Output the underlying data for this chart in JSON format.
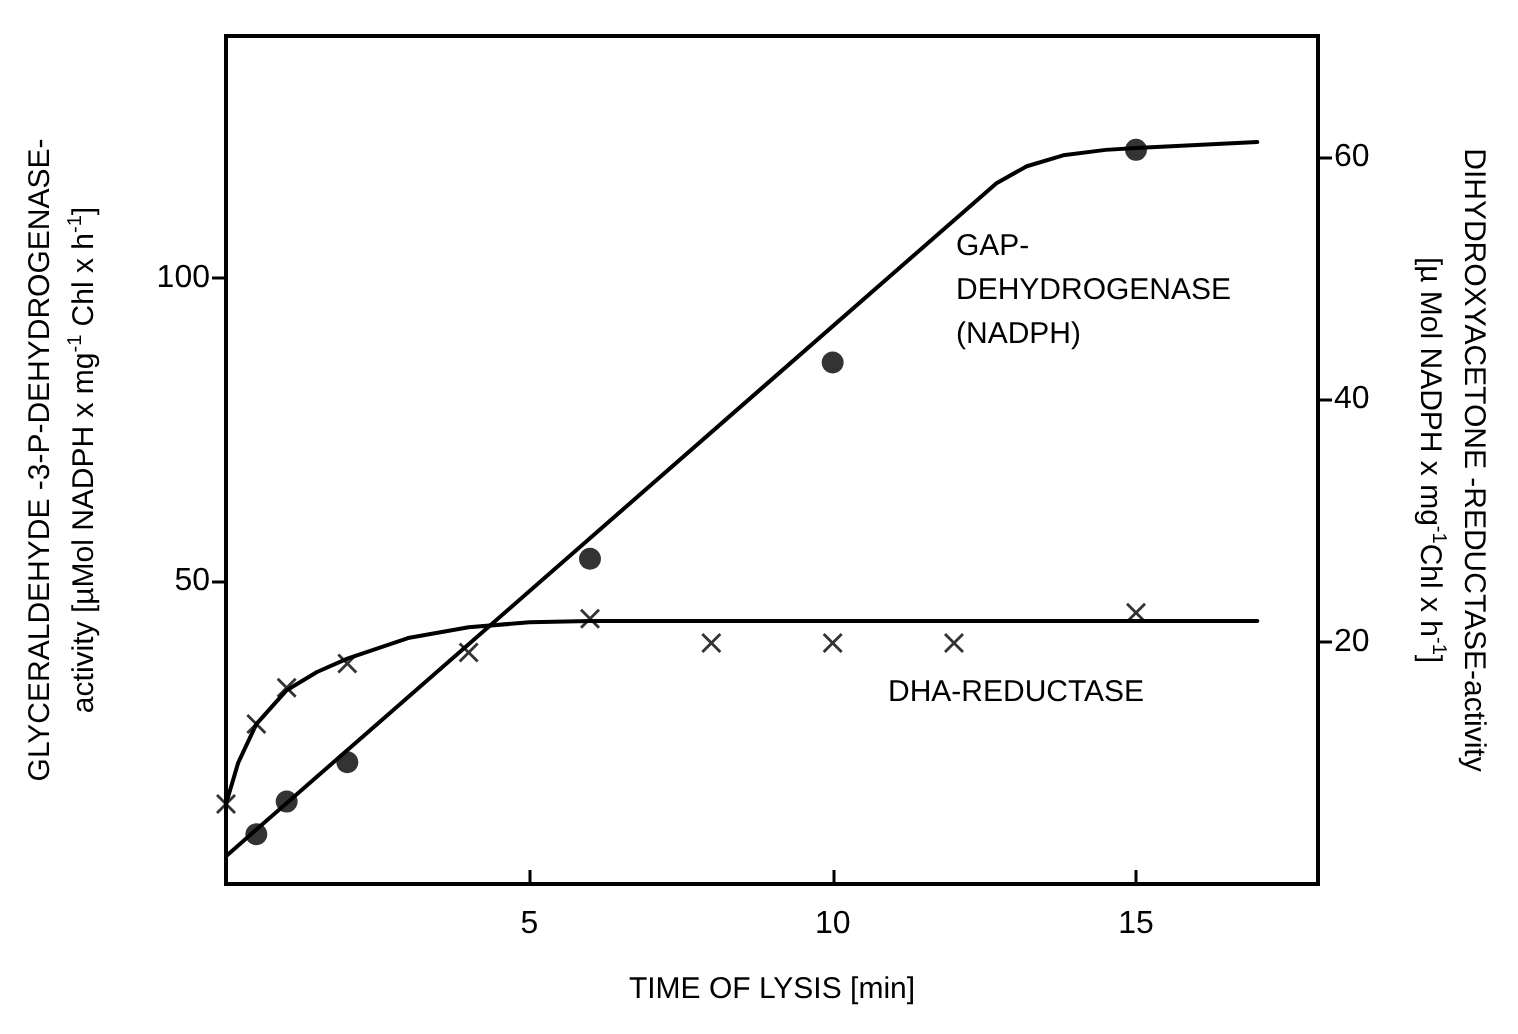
{
  "chart_data": {
    "type": "scatter",
    "xlabel": "TIME OF LYSIS [min]",
    "ylabel": "GLYCERALDEHYDE -3-P-DEHYDROGENASE-\nactivity [µMol NADPH x mg$^{-1}$ Chl x h$^{-1}$]",
    "y2label": "DIHYDROXYACETONE -REDUCTASE-activity\n[µ Mol NADPH x mg$^{-1}$Chl x h$^{-1}$]",
    "xlim": [
      0,
      18
    ],
    "xticks": [
      5,
      10,
      15
    ],
    "ylim": [
      0,
      140
    ],
    "yticks": [
      50,
      100
    ],
    "y2lim": [
      0,
      70
    ],
    "y2ticks": [
      20,
      40,
      60
    ],
    "grid": false,
    "annotations": [
      "GAP-\nDEHYDROGENASE\n(NADPH)",
      "DHA-REDUCTASE"
    ],
    "series": [
      {
        "color": "#000000",
        "marker": "circle",
        "x": [
          0.5,
          1,
          2,
          6,
          10,
          15
        ],
        "values": [
          8.2,
          13.6,
          20.1,
          53.7,
          86.1,
          121.2
        ]
      },
      {
        "type": "line",
        "color": "#000000",
        "marker": "none",
        "line_style": "solid",
        "x": [
          0,
          12.7,
          13.2,
          13.8,
          14.5,
          15,
          17
        ],
        "values": [
          4.6,
          115.7,
          118.5,
          120.3,
          121.2,
          121.5,
          122.5
        ]
      },
      {
        "axis": "y2",
        "color": "#000000",
        "marker": "cross",
        "x": [
          0,
          0.5,
          1,
          2,
          4,
          6,
          8,
          10,
          12,
          15
        ],
        "values": [
          6.6,
          13.2,
          16.2,
          18.2,
          19.1,
          21.9,
          19.9,
          19.9,
          19.9,
          22.4
        ]
      },
      {
        "type": "line",
        "axis": "y2",
        "color": "#000000",
        "marker": "none",
        "line_style": "solid",
        "x": [
          0,
          0.2,
          0.5,
          1,
          1.5,
          2,
          3,
          4,
          5,
          6,
          17
        ],
        "values": [
          6.6,
          10,
          13.2,
          16,
          17.5,
          18.6,
          20.3,
          21.2,
          21.6,
          21.7,
          21.7
        ]
      }
    ]
  }
}
